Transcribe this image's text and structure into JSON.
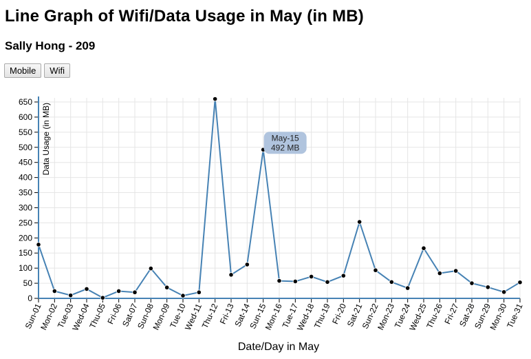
{
  "page": {
    "title": "Line Graph of Wifi/Data Usage in May (in MB)",
    "subtitle": "Sally Hong - 209"
  },
  "controls": {
    "mobile_label": "Mobile",
    "wifi_label": "Wifi"
  },
  "tooltip": {
    "date": "May-15",
    "value_text": "492 MB"
  },
  "colors": {
    "line": "#4682b4",
    "grid": "#e5e5e5",
    "axis": "#4682b4",
    "tooltip_bg": "#b0c4de"
  },
  "chart_data": {
    "type": "line",
    "xlabel": "Date/Day in May",
    "ylabel": "Data Usage (in MB)",
    "ylim": [
      0,
      650
    ],
    "yticks": [
      0,
      50,
      100,
      150,
      200,
      250,
      300,
      350,
      400,
      450,
      500,
      550,
      600,
      650
    ],
    "grid": true,
    "categories": [
      "Sun-01",
      "Mon-02",
      "Tue-03",
      "Wed-04",
      "Thu-05",
      "Fri-06",
      "Sat-07",
      "Sun-08",
      "Mon-09",
      "Tue-10",
      "Wed-11",
      "Thu-12",
      "Fri-13",
      "Sat-14",
      "Sun-15",
      "Mon-16",
      "Tue-17",
      "Wed-18",
      "Thu-19",
      "Fri-20",
      "Sat-21",
      "Sun-22",
      "Mon-23",
      "Tue-24",
      "Wed-25",
      "Thu-26",
      "Fri-27",
      "Sat-28",
      "Sun-29",
      "Mon-30",
      "Tue-31"
    ],
    "values": [
      178,
      24,
      10,
      31,
      2,
      24,
      20,
      99,
      36,
      9,
      20,
      660,
      78,
      112,
      492,
      58,
      56,
      72,
      54,
      75,
      253,
      93,
      54,
      34,
      166,
      83,
      91,
      50,
      37,
      21,
      53
    ]
  }
}
